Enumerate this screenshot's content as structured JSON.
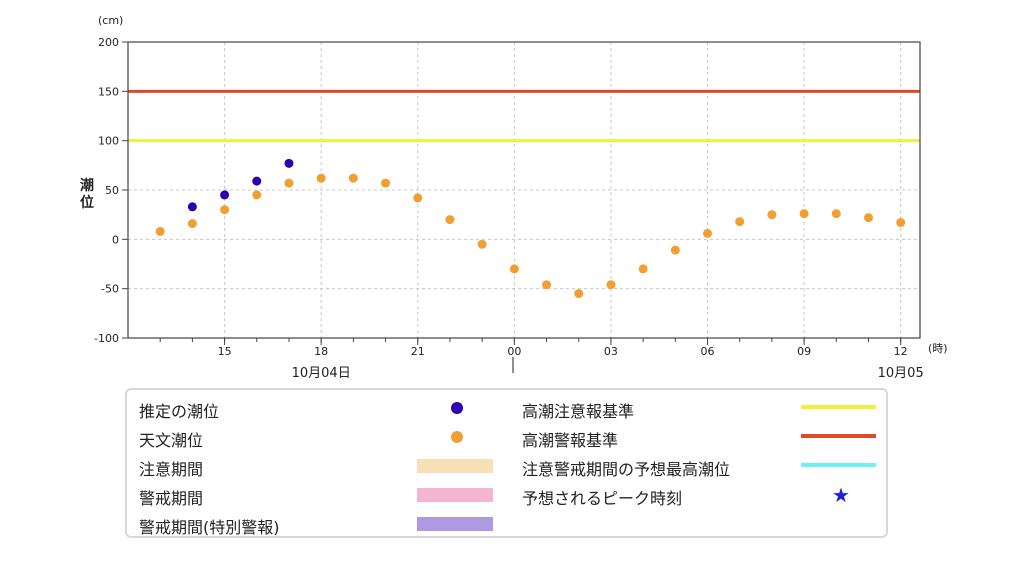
{
  "chart_data": {
    "type": "scatter",
    "y_unit_label": "(cm)",
    "x_unit_label": "(時)",
    "ylabel": "潮位",
    "ylim": [
      -100,
      200
    ],
    "yticks": [
      200,
      150,
      100,
      50,
      0,
      -50,
      -100
    ],
    "x_start_hour": 12,
    "x_end_hour": 36.6,
    "xticks": [
      {
        "hour": 15,
        "label": "15"
      },
      {
        "hour": 18,
        "label": "18"
      },
      {
        "hour": 21,
        "label": "21"
      },
      {
        "hour": 24,
        "label": "00"
      },
      {
        "hour": 27,
        "label": "03"
      },
      {
        "hour": 30,
        "label": "06"
      },
      {
        "hour": 33,
        "label": "09"
      },
      {
        "hour": 36,
        "label": "12"
      }
    ],
    "date_labels": [
      {
        "hour": 18,
        "label": "10月04日"
      },
      {
        "hour": 36,
        "label": "10月05"
      }
    ],
    "grid": true,
    "thresholds": [
      {
        "name": "高潮注意報基準",
        "value": 100,
        "color": "#f2f03a"
      },
      {
        "name": "高潮警報基準",
        "value": 150,
        "color": "#e0482a"
      }
    ],
    "series": [
      {
        "name": "推定の潮位",
        "color": "#2a00b0",
        "points": [
          [
            14,
            33
          ],
          [
            15,
            45
          ],
          [
            16,
            59
          ],
          [
            17,
            77
          ]
        ]
      },
      {
        "name": "天文潮位",
        "color": "#f0a030",
        "points": [
          [
            13,
            8
          ],
          [
            14,
            16
          ],
          [
            15,
            30
          ],
          [
            16,
            45
          ],
          [
            17,
            57
          ],
          [
            18,
            62
          ],
          [
            19,
            62
          ],
          [
            20,
            57
          ],
          [
            21,
            42
          ],
          [
            22,
            20
          ],
          [
            23,
            -5
          ],
          [
            24,
            -30
          ],
          [
            25,
            -46
          ],
          [
            26,
            -55
          ],
          [
            27,
            -46
          ],
          [
            28,
            -30
          ],
          [
            29,
            -11
          ],
          [
            30,
            6
          ],
          [
            31,
            18
          ],
          [
            32,
            25
          ],
          [
            33,
            26
          ],
          [
            34,
            26
          ],
          [
            35,
            22
          ],
          [
            36,
            17
          ]
        ]
      }
    ]
  },
  "legend": {
    "estimated": "推定の潮位",
    "astronomical": "天文潮位",
    "caution_period": "注意期間",
    "warning_period": "警戒期間",
    "special_warning_period": "警戒期間(特別警報)",
    "advisory_level": "高潮注意報基準",
    "warning_level": "高潮警報基準",
    "predicted_max": "注意警戒期間の予想最高潮位",
    "peak_time": "予想されるピーク時刻",
    "colors": {
      "estimated": "#2a00b0",
      "astronomical": "#f0a030",
      "caution_period": "#f8dfb5",
      "warning_period": "#f4b6cf",
      "special_warning_period": "#ad9ae0",
      "advisory_level": "#f2f03a",
      "warning_level": "#e0482a",
      "predicted_max": "#6ff0f4",
      "peak_time": "#1a20e0"
    }
  }
}
